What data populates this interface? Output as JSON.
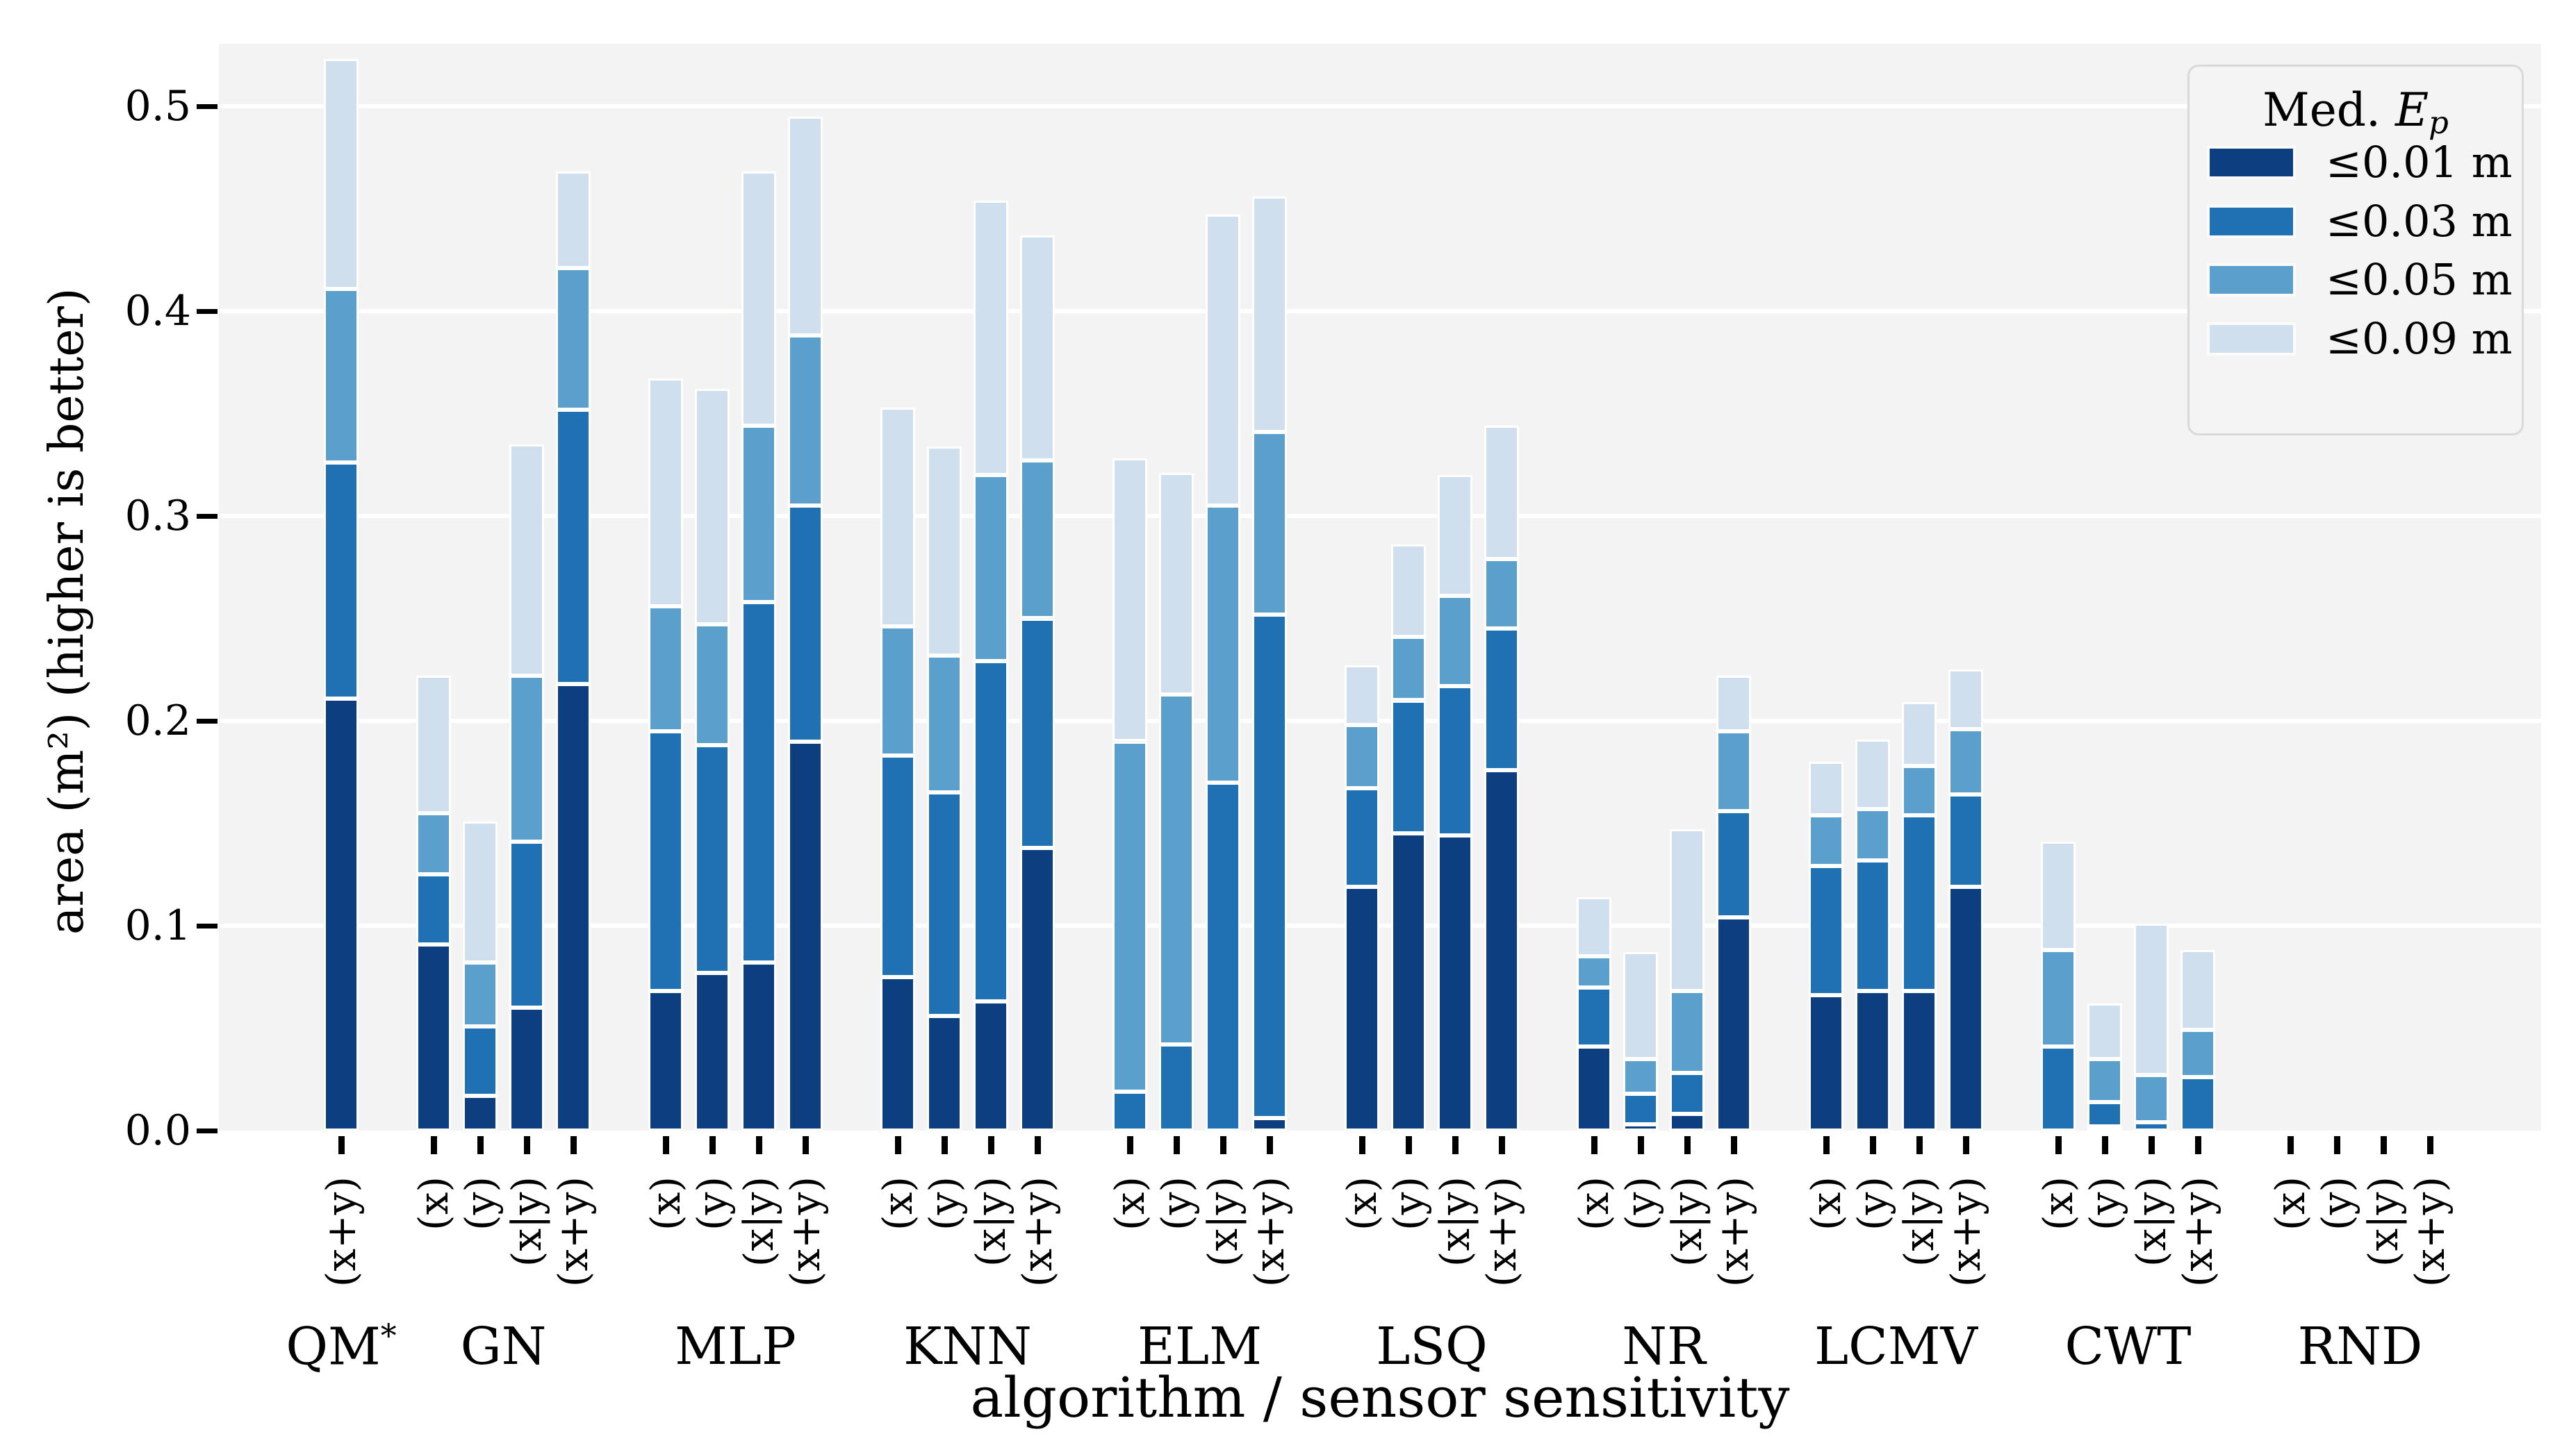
{
  "chart_data": {
    "type": "bar",
    "variant": "stacked-vertical",
    "title": "",
    "xlabel": "algorithm / sensor sensitivity",
    "ylabel": "area (m²) (higher is better)",
    "ylim": [
      0,
      0.53
    ],
    "yticks": [
      0.0,
      0.1,
      0.2,
      0.3,
      0.4,
      0.5
    ],
    "grid": "horizontal-white-on-gray",
    "plot_background": "#f3f3f3",
    "legend": {
      "position": "upper-right",
      "title_prefix": "Med. ",
      "title_var": "E",
      "title_sub": "p",
      "entries": [
        {
          "label": "≤0.01 m",
          "color": "#0d3f80"
        },
        {
          "label": "≤0.03 m",
          "color": "#2070b4"
        },
        {
          "label": "≤0.05 m",
          "color": "#5ba0cd"
        },
        {
          "label": "≤0.09 m",
          "color": "#cfdfee"
        }
      ]
    },
    "series_labels": [
      "≤0.01 m",
      "≤0.03 m",
      "≤0.05 m",
      "≤0.09 m"
    ],
    "values_are": "cumulative area in m² for thresholds 0.01 / 0.03 / 0.05 / 0.09",
    "groups": [
      {
        "name": "QM",
        "sup": "*",
        "bars": [
          {
            "label": "(x+y)",
            "cumulative": [
              0.211,
              0.326,
              0.411,
              0.523
            ]
          }
        ]
      },
      {
        "name": "GN",
        "bars": [
          {
            "label": "(x)",
            "cumulative": [
              0.091,
              0.125,
              0.155,
              0.222
            ]
          },
          {
            "label": "(y)",
            "cumulative": [
              0.017,
              0.051,
              0.082,
              0.151
            ]
          },
          {
            "label": "(x|y)",
            "cumulative": [
              0.06,
              0.141,
              0.222,
              0.335
            ]
          },
          {
            "label": "(x+y)",
            "cumulative": [
              0.218,
              0.352,
              0.421,
              0.468
            ]
          }
        ]
      },
      {
        "name": "MLP",
        "bars": [
          {
            "label": "(x)",
            "cumulative": [
              0.068,
              0.195,
              0.256,
              0.367
            ]
          },
          {
            "label": "(y)",
            "cumulative": [
              0.077,
              0.188,
              0.247,
              0.362
            ]
          },
          {
            "label": "(x|y)",
            "cumulative": [
              0.082,
              0.258,
              0.344,
              0.468
            ]
          },
          {
            "label": "(x+y)",
            "cumulative": [
              0.19,
              0.305,
              0.388,
              0.495
            ]
          }
        ]
      },
      {
        "name": "KNN",
        "bars": [
          {
            "label": "(x)",
            "cumulative": [
              0.075,
              0.183,
              0.246,
              0.353
            ]
          },
          {
            "label": "(y)",
            "cumulative": [
              0.056,
              0.165,
              0.232,
              0.334
            ]
          },
          {
            "label": "(x|y)",
            "cumulative": [
              0.063,
              0.229,
              0.32,
              0.454
            ]
          },
          {
            "label": "(x+y)",
            "cumulative": [
              0.138,
              0.25,
              0.327,
              0.437
            ]
          }
        ]
      },
      {
        "name": "ELM",
        "bars": [
          {
            "label": "(x)",
            "cumulative": [
              0.0,
              0.019,
              0.19,
              0.328
            ]
          },
          {
            "label": "(y)",
            "cumulative": [
              0.0,
              0.042,
              0.213,
              0.321
            ]
          },
          {
            "label": "(x|y)",
            "cumulative": [
              0.0,
              0.17,
              0.305,
              0.447
            ]
          },
          {
            "label": "(x+y)",
            "cumulative": [
              0.006,
              0.252,
              0.341,
              0.456
            ]
          }
        ]
      },
      {
        "name": "LSQ",
        "bars": [
          {
            "label": "(x)",
            "cumulative": [
              0.119,
              0.167,
              0.198,
              0.227
            ]
          },
          {
            "label": "(y)",
            "cumulative": [
              0.145,
              0.21,
              0.241,
              0.286
            ]
          },
          {
            "label": "(x|y)",
            "cumulative": [
              0.144,
              0.217,
              0.261,
              0.32
            ]
          },
          {
            "label": "(x+y)",
            "cumulative": [
              0.176,
              0.245,
              0.279,
              0.344
            ]
          }
        ]
      },
      {
        "name": "NR",
        "bars": [
          {
            "label": "(x)",
            "cumulative": [
              0.041,
              0.07,
              0.085,
              0.114
            ]
          },
          {
            "label": "(y)",
            "cumulative": [
              0.003,
              0.018,
              0.035,
              0.087
            ]
          },
          {
            "label": "(x|y)",
            "cumulative": [
              0.008,
              0.028,
              0.068,
              0.147
            ]
          },
          {
            "label": "(x+y)",
            "cumulative": [
              0.104,
              0.156,
              0.195,
              0.222
            ]
          }
        ]
      },
      {
        "name": "LCMV",
        "bars": [
          {
            "label": "(x)",
            "cumulative": [
              0.066,
              0.129,
              0.154,
              0.18
            ]
          },
          {
            "label": "(y)",
            "cumulative": [
              0.068,
              0.132,
              0.157,
              0.191
            ]
          },
          {
            "label": "(x|y)",
            "cumulative": [
              0.068,
              0.154,
              0.178,
              0.209
            ]
          },
          {
            "label": "(x+y)",
            "cumulative": [
              0.119,
              0.164,
              0.196,
              0.225
            ]
          }
        ]
      },
      {
        "name": "CWT",
        "bars": [
          {
            "label": "(x)",
            "cumulative": [
              0.0,
              0.041,
              0.088,
              0.141
            ]
          },
          {
            "label": "(y)",
            "cumulative": [
              0.002,
              0.014,
              0.035,
              0.062
            ]
          },
          {
            "label": "(x|y)",
            "cumulative": [
              0.0,
              0.004,
              0.027,
              0.101
            ]
          },
          {
            "label": "(x+y)",
            "cumulative": [
              0.0,
              0.026,
              0.049,
              0.088
            ]
          }
        ]
      },
      {
        "name": "RND",
        "bars": [
          {
            "label": "(x)",
            "cumulative": [
              0.0,
              0.0,
              0.0,
              0.0
            ]
          },
          {
            "label": "(y)",
            "cumulative": [
              0.0,
              0.0,
              0.0,
              0.0
            ]
          },
          {
            "label": "(x|y)",
            "cumulative": [
              0.0,
              0.0,
              0.0,
              0.0
            ]
          },
          {
            "label": "(x+y)",
            "cumulative": [
              0.0,
              0.0,
              0.0,
              0.0
            ]
          }
        ]
      }
    ]
  }
}
